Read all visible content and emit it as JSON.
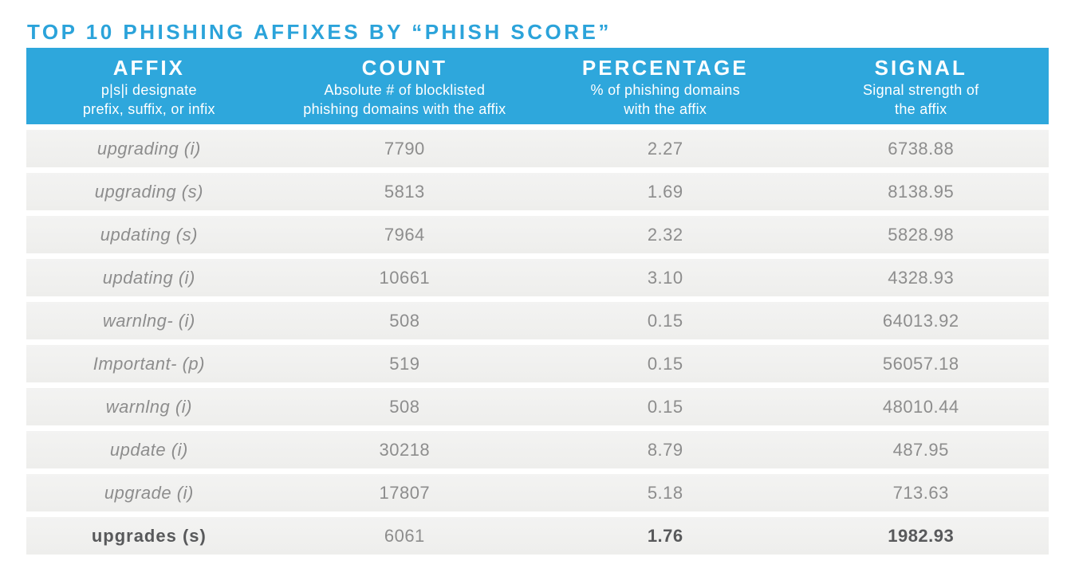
{
  "title": "TOP 10 PHISHING AFFIXES BY “PHISH SCORE”",
  "colors": {
    "accent_blue": "#2ea7dc",
    "title_blue": "#2ba3da",
    "header_text": "#ffffff",
    "row_background": "#f0f0ef",
    "row_text_gray": "#8d8d8d",
    "emphasis_text": "#58595b",
    "page_background": "#ffffff"
  },
  "chart_data": {
    "type": "table",
    "title": "TOP 10 PHISHING AFFIXES BY “PHISH SCORE”",
    "columns": [
      {
        "label": "AFFIX",
        "desc_line1": "p|s|i designate",
        "desc_line2": "prefix, suffix, or infix"
      },
      {
        "label": "COUNT",
        "desc_line1": "Absolute # of blocklisted",
        "desc_line2": "phishing domains with the affix"
      },
      {
        "label": "PERCENTAGE",
        "desc_line1": "% of phishing domains",
        "desc_line2": "with the affix"
      },
      {
        "label": "SIGNAL",
        "desc_line1": "Signal strength of",
        "desc_line2": "the affix"
      }
    ],
    "rows": [
      {
        "affix": "upgrading (i)",
        "count": "7790",
        "percentage": "2.27",
        "signal": "6738.88"
      },
      {
        "affix": "upgrading (s)",
        "count": "5813",
        "percentage": "1.69",
        "signal": "8138.95"
      },
      {
        "affix": "updating (s)",
        "count": "7964",
        "percentage": "2.32",
        "signal": "5828.98"
      },
      {
        "affix": "updating (i)",
        "count": "10661",
        "percentage": "3.10",
        "signal": "4328.93"
      },
      {
        "affix": "warnlng- (i)",
        "count": "508",
        "percentage": "0.15",
        "signal": "64013.92"
      },
      {
        "affix": "Important- (p)",
        "count": "519",
        "percentage": "0.15",
        "signal": "56057.18"
      },
      {
        "affix": "warnlng (i)",
        "count": "508",
        "percentage": "0.15",
        "signal": "48010.44"
      },
      {
        "affix": "update (i)",
        "count": "30218",
        "percentage": "8.79",
        "signal": "487.95"
      },
      {
        "affix": "upgrade (i)",
        "count": "17807",
        "percentage": "5.18",
        "signal": "713.63"
      },
      {
        "affix": "upgrades (s)",
        "count": "6061",
        "percentage": "1.76",
        "signal": "1982.93"
      }
    ],
    "emphasized_row_index": 9,
    "layout": {
      "grid": "off",
      "legend": "none",
      "row_striping": "uniform light gray bands with white gaps"
    }
  }
}
